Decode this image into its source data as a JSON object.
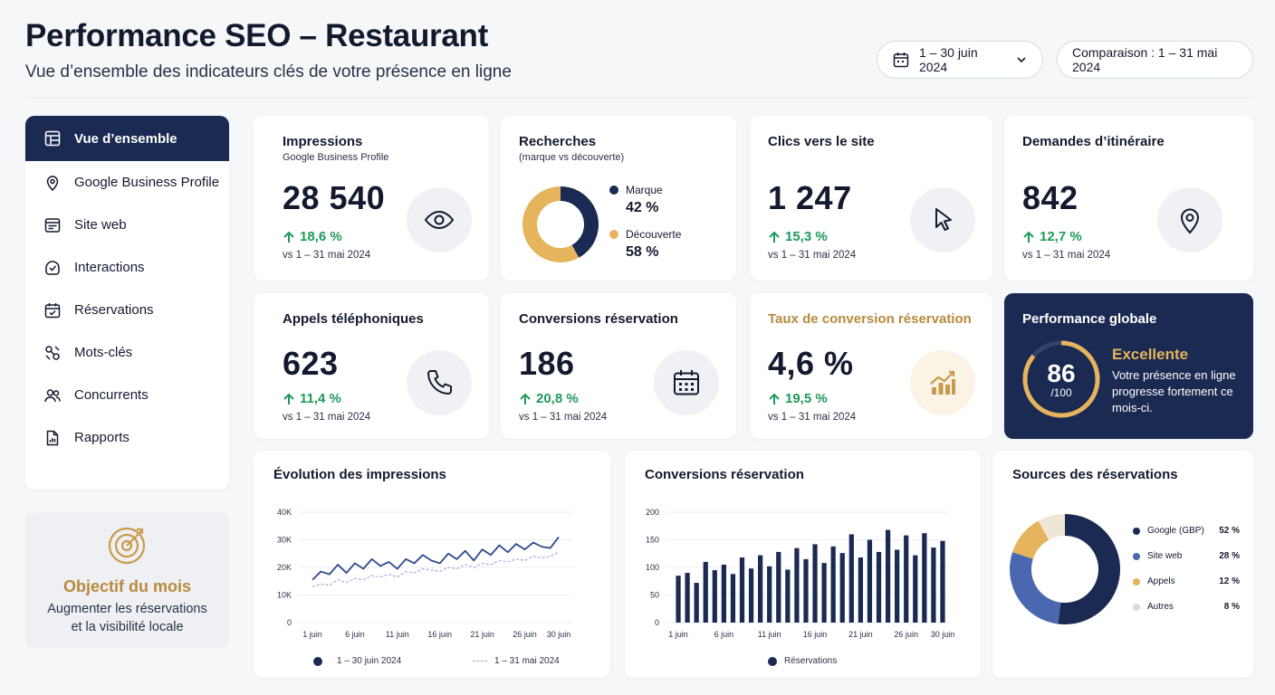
{
  "header": {
    "title": "Performance SEO – Restaurant",
    "subtitle": "Vue d’ensemble des indicateurs clés de votre présence en ligne",
    "date_range": "1 – 30 juin 2024",
    "comparison": "Comparaison : 1 – 31 mai 2024"
  },
  "sidebar": {
    "items": [
      {
        "label": "Vue d’ensemble",
        "icon": "layout-icon"
      },
      {
        "label": "Google Business Profile",
        "icon": "location-pin-icon"
      },
      {
        "label": "Site web",
        "icon": "browser-icon"
      },
      {
        "label": "Interactions",
        "icon": "interactions-icon"
      },
      {
        "label": "Réservations",
        "icon": "calendar-check-icon"
      },
      {
        "label": "Mots-clés",
        "icon": "keyword-icon"
      },
      {
        "label": "Concurrents",
        "icon": "users-icon"
      },
      {
        "label": "Rapports",
        "icon": "report-icon"
      }
    ]
  },
  "goal": {
    "title": "Objectif du mois",
    "line1": "Augmenter les réservations",
    "line2": "et la visibilité locale"
  },
  "kpis": {
    "impressions": {
      "title": "Impressions",
      "subtitle": "Google Business Profile",
      "value": "28 540",
      "delta": "18,6 %",
      "compare": "vs 1 – 31 mai 2024"
    },
    "searches": {
      "title": "Recherches",
      "subtitle": "(marque vs découverte)",
      "brand_label": "Marque",
      "brand_pct": "42 %",
      "brand_value": 42,
      "discovery_label": "Découverte",
      "discovery_pct": "58 %",
      "discovery_value": 58
    },
    "clicks": {
      "title": "Clics vers le site",
      "value": "1 247",
      "delta": "15,3 %",
      "compare": "vs 1 – 31 mai 2024"
    },
    "directions": {
      "title": "Demandes d’itinéraire",
      "value": "842",
      "delta": "12,7 %",
      "compare": "vs 1 – 31 mai 2024"
    },
    "calls": {
      "title": "Appels téléphoniques",
      "value": "623",
      "delta": "11,4 %",
      "compare": "vs 1 – 31 mai 2024"
    },
    "conversions": {
      "title": "Conversions réservation",
      "value": "186",
      "delta": "20,8 %",
      "compare": "vs 1 – 31 mai 2024"
    },
    "conv_rate": {
      "title": "Taux de conversion réservation",
      "value": "4,6 %",
      "delta": "19,5 %",
      "compare": "vs 1 – 31 mai 2024"
    }
  },
  "performance": {
    "title": "Performance globale",
    "score": "86",
    "score_value": 86,
    "denominator": "/100",
    "label": "Excellente",
    "text": "Votre présence en ligne progresse fortement ce mois-ci."
  },
  "colors": {
    "navy": "#1b2a52",
    "gold": "#e5b45c",
    "blue": "#4a68b0",
    "green": "#1e9a5a",
    "light": "#e6e8ec"
  },
  "chart_data": [
    {
      "type": "line",
      "title": "Évolution des impressions",
      "x": [
        "1 juin",
        "2 juin",
        "3 juin",
        "4 juin",
        "5 juin",
        "6 juin",
        "7 juin",
        "8 juin",
        "9 juin",
        "10 juin",
        "11 juin",
        "12 juin",
        "13 juin",
        "14 juin",
        "15 juin",
        "16 juin",
        "17 juin",
        "18 juin",
        "19 juin",
        "20 juin",
        "21 juin",
        "22 juin",
        "23 juin",
        "24 juin",
        "25 juin",
        "26 juin",
        "27 juin",
        "28 juin",
        "29 juin",
        "30 juin"
      ],
      "x_ticks": [
        "1 juin",
        "6 juin",
        "11 juin",
        "16 juin",
        "21 juin",
        "26 juin",
        "30 juin"
      ],
      "y_ticks": [
        "40K",
        "30K",
        "20K",
        "10K",
        "0"
      ],
      "ylim": [
        0,
        40000
      ],
      "series": [
        {
          "name": "1 – 30 juin 2024",
          "values": [
            15500,
            18500,
            17500,
            21000,
            18000,
            21500,
            19500,
            23000,
            20500,
            22000,
            19500,
            23000,
            21500,
            24500,
            22500,
            21500,
            25000,
            23000,
            26000,
            22500,
            26500,
            24500,
            28000,
            25500,
            28500,
            26500,
            29000,
            27500,
            27000,
            31000
          ]
        },
        {
          "name": "1 – 31 mai 2024",
          "values": [
            13000,
            14000,
            13500,
            15500,
            14500,
            16000,
            15500,
            17000,
            16500,
            17500,
            16500,
            18500,
            18000,
            19500,
            19000,
            18500,
            20000,
            19500,
            21000,
            20000,
            21500,
            21000,
            22500,
            22000,
            23000,
            22500,
            24000,
            23500,
            24000,
            25500
          ]
        }
      ]
    },
    {
      "type": "bar",
      "title": "Conversions réservation",
      "x": [
        "1 juin",
        "2 juin",
        "3 juin",
        "4 juin",
        "5 juin",
        "6 juin",
        "7 juin",
        "8 juin",
        "9 juin",
        "10 juin",
        "11 juin",
        "12 juin",
        "13 juin",
        "14 juin",
        "15 juin",
        "16 juin",
        "17 juin",
        "18 juin",
        "19 juin",
        "20 juin",
        "21 juin",
        "22 juin",
        "23 juin",
        "24 juin",
        "25 juin",
        "26 juin",
        "27 juin",
        "28 juin",
        "29 juin",
        "30 juin"
      ],
      "x_ticks": [
        "1 juin",
        "6 juin",
        "11 juin",
        "16 juin",
        "21 juin",
        "26 juin",
        "30 juin"
      ],
      "y_ticks": [
        "200",
        "150",
        "100",
        "50",
        "0"
      ],
      "ylim": [
        0,
        200
      ],
      "series": [
        {
          "name": "Réservations",
          "values": [
            85,
            90,
            72,
            110,
            95,
            105,
            88,
            118,
            98,
            122,
            102,
            128,
            96,
            135,
            115,
            142,
            108,
            138,
            126,
            160,
            118,
            150,
            128,
            168,
            132,
            158,
            122,
            162,
            136,
            148
          ]
        }
      ]
    },
    {
      "type": "pie",
      "title": "Sources des réservations",
      "slices": [
        {
          "label": "Google (GBP)",
          "pct": "52 %",
          "value": 52,
          "color": "#1b2a52"
        },
        {
          "label": "Site web",
          "pct": "28 %",
          "value": 28,
          "color": "#4a68b0"
        },
        {
          "label": "Appels",
          "pct": "12 %",
          "value": 12,
          "color": "#e5b45c"
        },
        {
          "label": "Autres",
          "pct": "8 %",
          "value": 8,
          "color": "#efe6d6"
        }
      ]
    }
  ]
}
